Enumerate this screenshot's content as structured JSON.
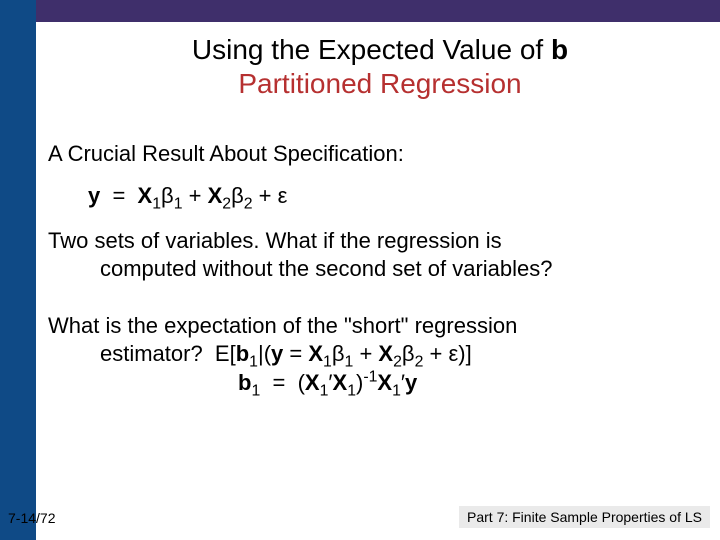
{
  "colors": {
    "top_bar": "#3f2f6b",
    "left_bar": "#0f4a86",
    "title_accent": "#b63030",
    "text": "#000000",
    "footer_box_bg": "#eaeaea"
  },
  "title": {
    "line1_pre": "Using the Expected Value of ",
    "line1_bold": "b",
    "line2": "Partitioned Regression",
    "fontsize": 28
  },
  "body": {
    "p1": "A Crucial Result About Specification:",
    "eq1_html": "<span class='bold'>y</span>&nbsp; = &nbsp;<span class='bold'>X</span><sub>1</sub>β<sub>1</sub> + <span class='bold'>X</span><sub>2</sub>β<sub>2</sub> + ε",
    "p2_l1": "Two sets of variables.  What if the regression is",
    "p2_l2": "computed without the second set of variables?",
    "p3_l1": "What is the expectation of the \"short\" regression",
    "p3_l2_html": "estimator?&nbsp; E[<span class='bold'>b</span><sub>1</sub>|(<span class='bold'>y</span> = <span class='bold'>X</span><sub>1</sub>β<sub>1</sub> + <span class='bold'>X</span><sub>2</sub>β<sub>2</sub> + ε)]",
    "eq2_html": "<span class='bold'>b</span><sub>1</sub>&nbsp; =&nbsp; (<span class='bold'>X</span><sub>1</sub>′<span class='bold'>X</span><sub>1</sub>)<sup>-1</sup><span class='bold'>X</span><sub>1</sub>′<span class='bold'>y</span>",
    "fontsize": 22
  },
  "footer": {
    "left": "7-14/72",
    "right": "Part 7: Finite Sample Properties of LS"
  }
}
